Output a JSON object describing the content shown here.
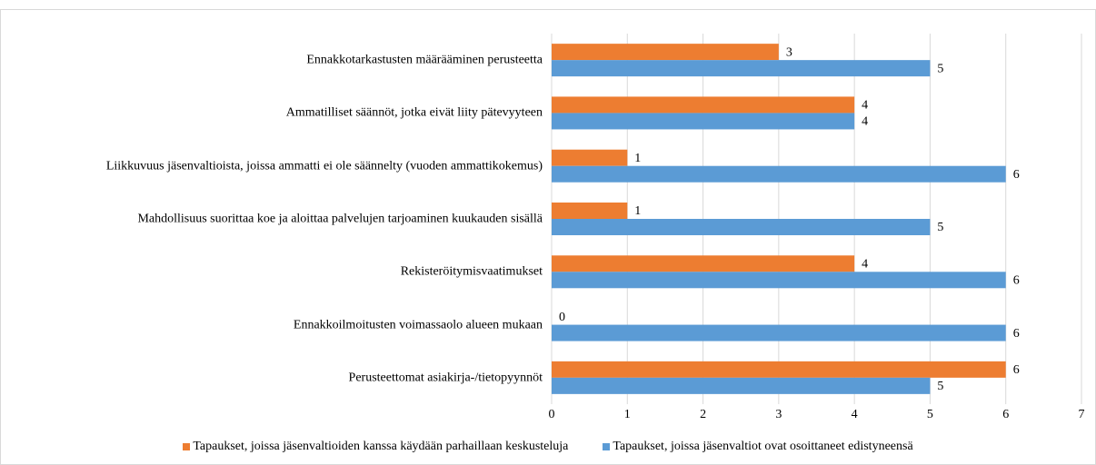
{
  "chart_data": {
    "type": "barh",
    "categories": [
      "Ennakkotarkastusten määrääminen perusteetta",
      "Ammatilliset säännöt, jotka eivät liity pätevyyteen",
      "Liikkuvuus jäsenvaltioista, joissa ammatti ei ole säännelty (vuoden ammattikokemus)",
      "Mahdollisuus suorittaa koe ja aloittaa palvelujen tarjoaminen kuukauden sisällä",
      "Rekisteröitymisvaatimukset",
      "Ennakkoilmoitusten voimassaolo alueen mukaan",
      "Perusteettomat asiakirja-/tietopyynnöt"
    ],
    "series": [
      {
        "name": "Tapaukset, joissa jäsenvaltioiden kanssa käydään parhaillaan keskusteluja",
        "color": "#ed7d31",
        "values": [
          3,
          4,
          1,
          1,
          4,
          0,
          6
        ]
      },
      {
        "name": "Tapaukset, joissa jäsenvaltiot ovat osoittaneet edistyneensä",
        "color": "#5b9bd5",
        "values": [
          5,
          4,
          6,
          5,
          6,
          6,
          5
        ]
      }
    ],
    "xlim": [
      0,
      7
    ],
    "xticks": [
      0,
      1,
      2,
      3,
      4,
      5,
      6,
      7
    ],
    "grid": true,
    "legend": "bottom"
  }
}
